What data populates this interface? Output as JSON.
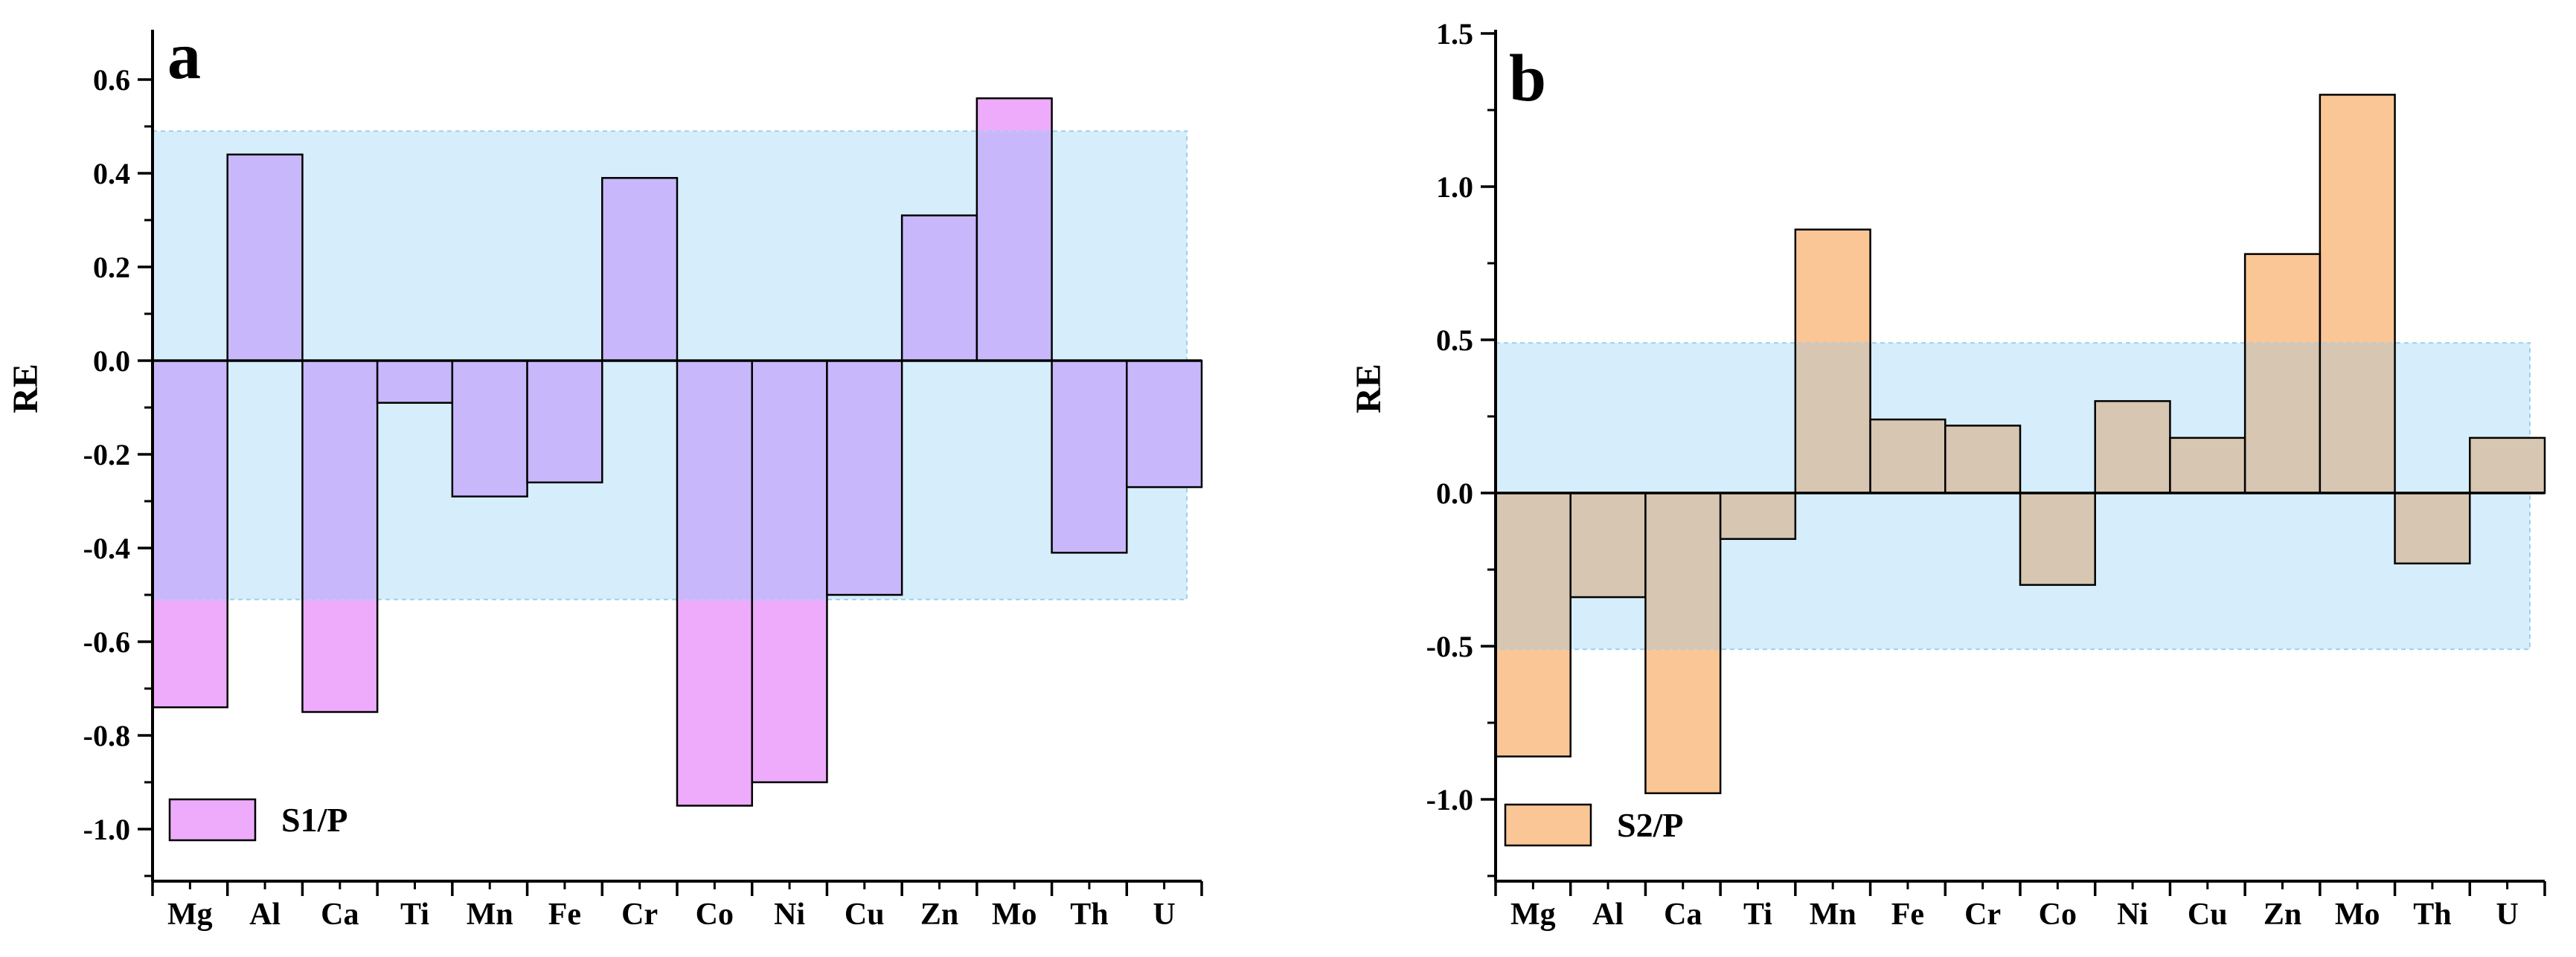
{
  "chart_data": [
    {
      "type": "bar",
      "panel_label": "a",
      "ylabel": "RE",
      "xlabel": "",
      "ylim": [
        -1.1,
        0.7
      ],
      "yticks": [
        0.6,
        0.4,
        0.2,
        0.0,
        -0.2,
        -0.4,
        -0.6,
        -0.8,
        -1.0
      ],
      "ytick_labels": [
        "0.6",
        "0.4",
        "0.2",
        "0.0",
        "-0.2",
        "-0.4",
        "-0.6",
        "-0.8",
        "-1.0"
      ],
      "band": [
        -0.51,
        0.49
      ],
      "categories": [
        "Mg",
        "Al",
        "Ca",
        "Ti",
        "Mn",
        "Fe",
        "Cr",
        "Co",
        "Ni",
        "Cu",
        "Zn",
        "Mo",
        "Th",
        "U"
      ],
      "series": [
        {
          "name": "S1/P",
          "values": [
            -0.74,
            0.44,
            -0.75,
            -0.09,
            -0.29,
            -0.26,
            0.39,
            -0.95,
            -0.9,
            -0.5,
            0.31,
            0.56,
            -0.41,
            -0.27
          ]
        }
      ],
      "colors": {
        "bar_inside": "#c8b8fb",
        "bar_outside": "#eeabfb",
        "band": "#d6eefb",
        "band_border": "#9fd0ee"
      },
      "legend": "bottom-left"
    },
    {
      "type": "bar",
      "panel_label": "b",
      "ylabel": "RE",
      "xlabel": "",
      "ylim": [
        -1.25,
        1.5
      ],
      "yticks": [
        1.5,
        1.0,
        0.5,
        0.0,
        -0.5,
        -1.0
      ],
      "ytick_labels": [
        "1.5",
        "1.0",
        "0.5",
        "0.0",
        "-0.5",
        "-1.0"
      ],
      "band": [
        -0.51,
        0.49
      ],
      "categories": [
        "Mg",
        "Al",
        "Ca",
        "Ti",
        "Mn",
        "Fe",
        "Cr",
        "Co",
        "Ni",
        "Cu",
        "Zn",
        "Mo",
        "Th",
        "U"
      ],
      "series": [
        {
          "name": "S2/P",
          "values": [
            -0.86,
            -0.34,
            -0.98,
            -0.15,
            0.86,
            0.24,
            0.22,
            -0.3,
            0.3,
            0.18,
            0.78,
            1.3,
            -0.23,
            0.18
          ]
        }
      ],
      "colors": {
        "bar_inside": "#d6c6b2",
        "bar_outside": "#fac696",
        "band": "#d6eefb",
        "band_border": "#9fd0ee"
      },
      "legend": "bottom-left"
    }
  ]
}
